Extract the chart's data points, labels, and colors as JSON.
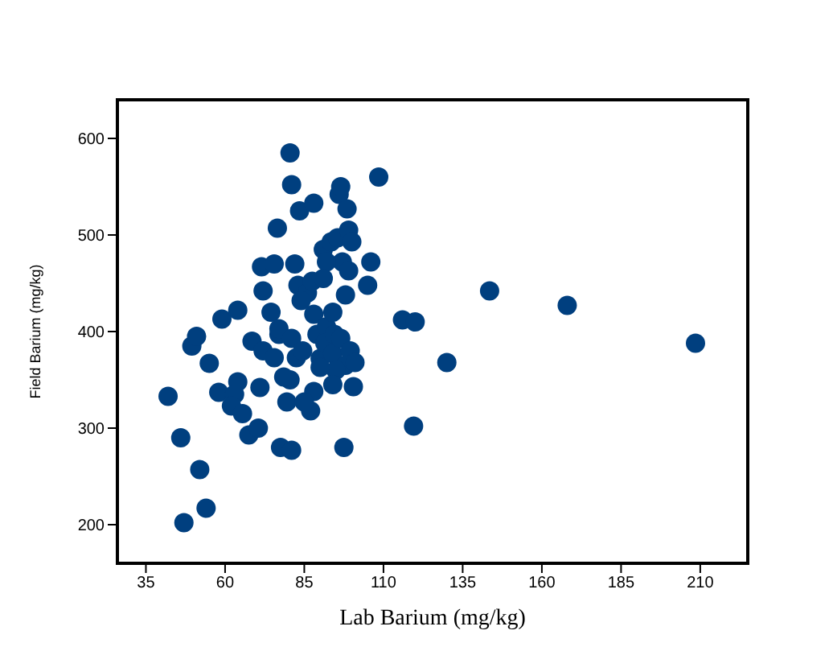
{
  "chart_data": {
    "type": "scatter",
    "xlabel": "Lab Barium (mg/kg)",
    "ylabel": "Field Barium (mg/kg)",
    "xlim": [
      26,
      225
    ],
    "xticks": [
      35,
      60,
      85,
      110,
      135,
      160,
      185,
      210
    ],
    "ylim": [
      160,
      640
    ],
    "yticks": [
      200,
      300,
      400,
      500,
      600
    ],
    "grid": false,
    "legend": false,
    "marker": "circle",
    "series": [
      {
        "color": "#003f7f",
        "x": [
          42,
          46,
          52,
          54,
          47,
          49.5,
          51,
          59,
          55,
          58,
          64,
          64,
          63,
          62,
          65.5,
          67.5,
          70.5,
          71,
          68.5,
          72,
          75.5,
          74.5,
          71.5,
          75.5,
          77,
          77,
          76.5,
          72,
          80.5,
          78.5,
          79.5,
          77.5,
          81,
          81,
          80.5,
          83.5,
          82,
          83,
          86,
          84,
          81,
          82.5,
          84.5,
          88,
          87,
          85,
          90,
          87.5,
          88,
          91,
          93.5,
          95.5,
          96,
          96.5,
          98.5,
          99,
          97,
          92,
          91,
          88,
          89,
          92,
          91.5,
          94.5,
          94,
          96.5,
          99.5,
          98,
          95,
          90,
          94,
          98,
          99,
          100,
          105,
          101,
          100.5,
          97.5,
          106,
          108.5,
          116,
          120,
          119.5,
          130,
          143.5,
          168,
          208.5,
          94
        ],
        "values": [
          333,
          290,
          257,
          217,
          202,
          385,
          395,
          413,
          367,
          337,
          422,
          348,
          335,
          323,
          315,
          293,
          300,
          342,
          390,
          380,
          373,
          420,
          467,
          470,
          397,
          403,
          507,
          442,
          350,
          353,
          327,
          280,
          277,
          552,
          585,
          525,
          470,
          448,
          440,
          432,
          393,
          373,
          380,
          338,
          318,
          327,
          372,
          452,
          533,
          485,
          493,
          497,
          542,
          550,
          527,
          505,
          472,
          472,
          455,
          418,
          397,
          405,
          388,
          397,
          377,
          393,
          380,
          365,
          360,
          363,
          420,
          438,
          463,
          493,
          448,
          368,
          343,
          280,
          472,
          560,
          412,
          410,
          302,
          368,
          442,
          427,
          388,
          345
        ]
      }
    ]
  }
}
